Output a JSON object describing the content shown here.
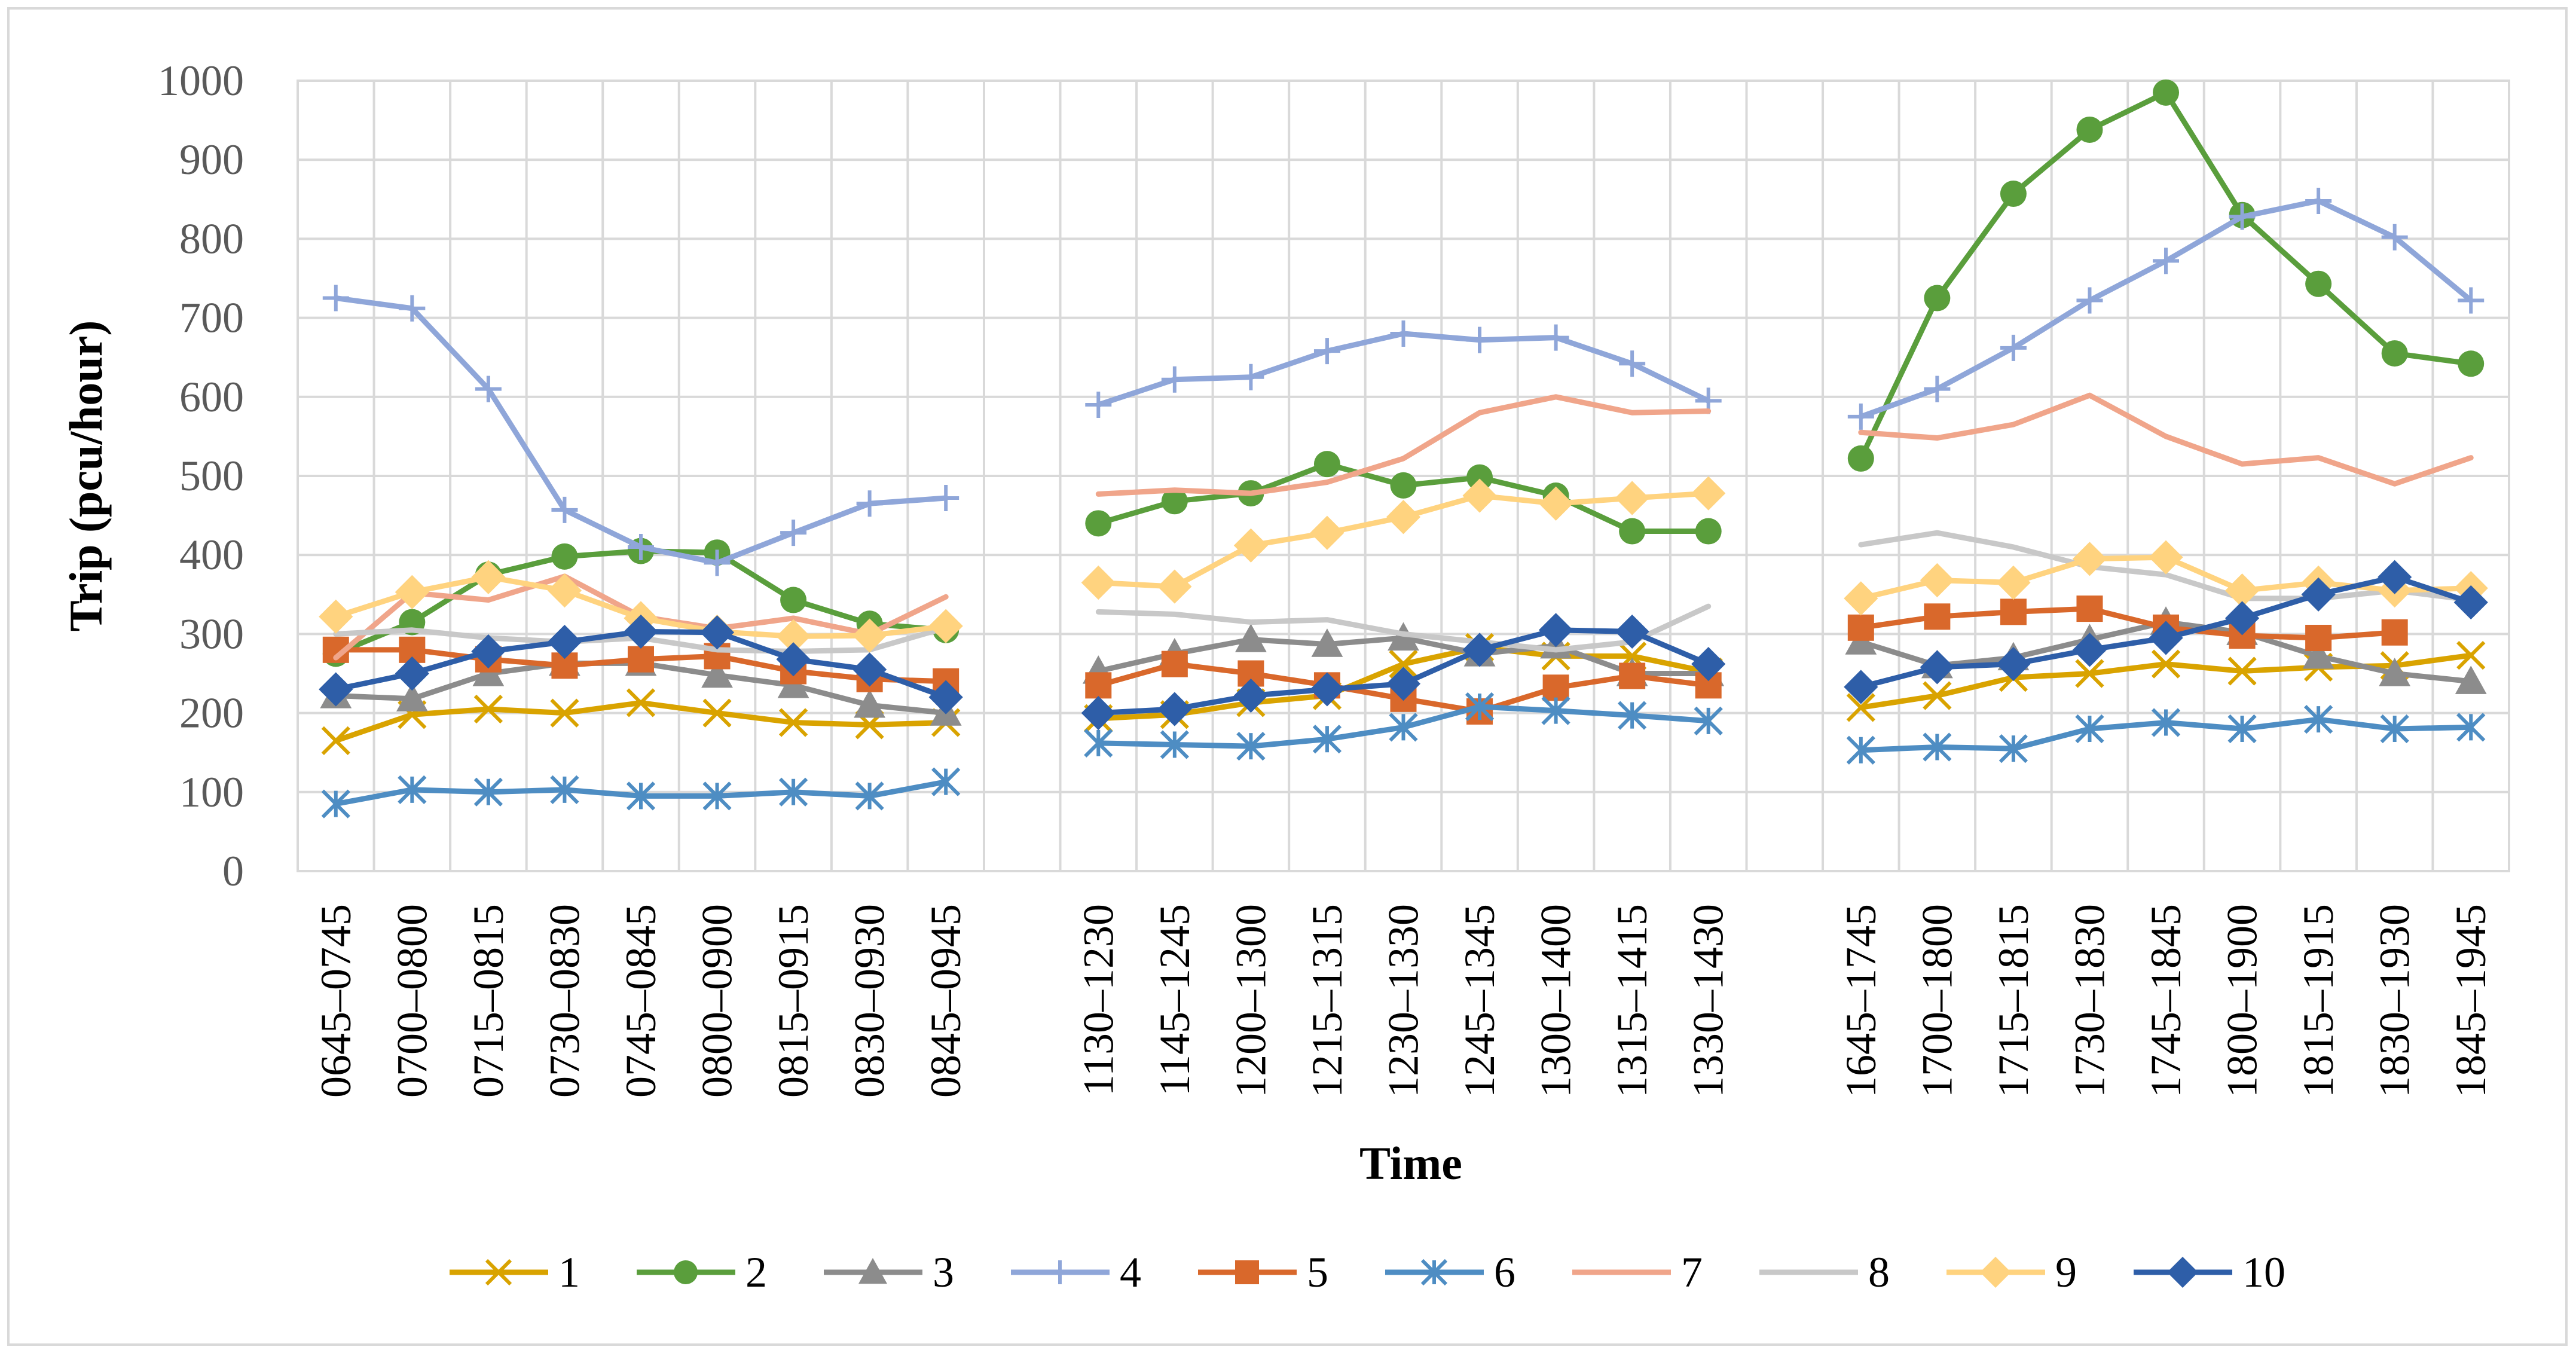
{
  "chart_data": {
    "type": "line",
    "title": "",
    "xlabel": "Time",
    "ylabel": "Trip (pcu/hour)",
    "ylim": [
      0,
      1000
    ],
    "yticks": [
      0,
      100,
      200,
      300,
      400,
      500,
      600,
      700,
      800,
      900,
      1000
    ],
    "grid": "both",
    "legend_position": "bottom",
    "categories": [
      "0645–0745",
      "0700–0800",
      "0715–0815",
      "0730–0830",
      "0745–0845",
      "0800–0900",
      "0815–0915",
      "0830–0930",
      "0845–0945",
      "",
      "1130–1230",
      "1145–1245",
      "1200–1300",
      "1215–1315",
      "1230–1330",
      "1245–1345",
      "1300–1400",
      "1315–1415",
      "1330–1430",
      "",
      "1645–1745",
      "1700–1800",
      "1715–1815",
      "1730–1830",
      "1745–1845",
      "1800–1900",
      "1815–1915",
      "1830–1930",
      "1845–1945"
    ],
    "series": [
      {
        "name": "1",
        "color": "#d9a300",
        "marker": "x",
        "values": [
          165,
          198,
          205,
          200,
          213,
          200,
          188,
          185,
          188,
          null,
          193,
          198,
          213,
          222,
          262,
          283,
          272,
          272,
          252,
          null,
          207,
          222,
          245,
          250,
          262,
          253,
          258,
          260,
          273
        ]
      },
      {
        "name": "2",
        "color": "#5a9e3c",
        "marker": "circle",
        "values": [
          275,
          315,
          375,
          398,
          405,
          403,
          343,
          313,
          305,
          null,
          440,
          468,
          478,
          515,
          488,
          498,
          475,
          430,
          430,
          null,
          522,
          725,
          857,
          938,
          985,
          830,
          743,
          655,
          642
        ]
      },
      {
        "name": "3",
        "color": "#8c8c8c",
        "marker": "triangle",
        "values": [
          222,
          218,
          250,
          263,
          263,
          248,
          235,
          210,
          200,
          null,
          253,
          275,
          293,
          287,
          295,
          275,
          285,
          250,
          250,
          null,
          290,
          260,
          270,
          293,
          315,
          302,
          272,
          250,
          240
        ]
      },
      {
        "name": "4",
        "color": "#8fa6d9",
        "marker": "plus",
        "values": [
          725,
          712,
          610,
          457,
          410,
          390,
          428,
          465,
          472,
          null,
          590,
          622,
          625,
          658,
          680,
          672,
          675,
          642,
          595,
          null,
          575,
          610,
          662,
          722,
          772,
          828,
          848,
          802,
          722
        ]
      },
      {
        "name": "5",
        "color": "#d9682b",
        "marker": "square",
        "values": [
          280,
          280,
          268,
          260,
          268,
          272,
          253,
          243,
          240,
          null,
          235,
          262,
          250,
          235,
          218,
          202,
          232,
          247,
          235,
          null,
          308,
          322,
          328,
          332,
          308,
          298,
          295,
          302,
          null
        ]
      },
      {
        "name": "6",
        "color": "#4e8dc3",
        "marker": "star",
        "values": [
          85,
          103,
          100,
          103,
          95,
          95,
          100,
          95,
          113,
          null,
          162,
          160,
          158,
          167,
          182,
          208,
          203,
          197,
          190,
          null,
          153,
          157,
          155,
          180,
          188,
          180,
          192,
          180,
          182
        ]
      },
      {
        "name": "7",
        "color": "#f0a58a",
        "marker": "none",
        "values": [
          270,
          352,
          343,
          373,
          322,
          307,
          320,
          300,
          347,
          null,
          477,
          482,
          478,
          492,
          522,
          580,
          600,
          580,
          582,
          null,
          555,
          548,
          565,
          602,
          550,
          515,
          523,
          490,
          523
        ]
      },
      {
        "name": "8",
        "color": "#c8c8c8",
        "marker": "none",
        "values": [
          300,
          305,
          295,
          290,
          295,
          280,
          278,
          280,
          308,
          null,
          328,
          325,
          315,
          318,
          300,
          290,
          280,
          290,
          335,
          null,
          413,
          428,
          410,
          385,
          375,
          345,
          345,
          355,
          343
        ]
      },
      {
        "name": "9",
        "color": "#ffd37f",
        "marker": "diamond",
        "values": [
          322,
          353,
          372,
          355,
          320,
          303,
          297,
          298,
          310,
          null,
          365,
          360,
          412,
          428,
          448,
          475,
          465,
          472,
          478,
          null,
          345,
          368,
          365,
          395,
          397,
          355,
          365,
          355,
          358
        ]
      },
      {
        "name": "10",
        "color": "#2e5ea8",
        "marker": "diamond",
        "values": [
          230,
          250,
          278,
          290,
          303,
          302,
          268,
          255,
          220,
          null,
          200,
          205,
          222,
          230,
          237,
          280,
          305,
          303,
          262,
          null,
          233,
          258,
          262,
          280,
          295,
          320,
          350,
          372,
          340
        ]
      }
    ]
  }
}
